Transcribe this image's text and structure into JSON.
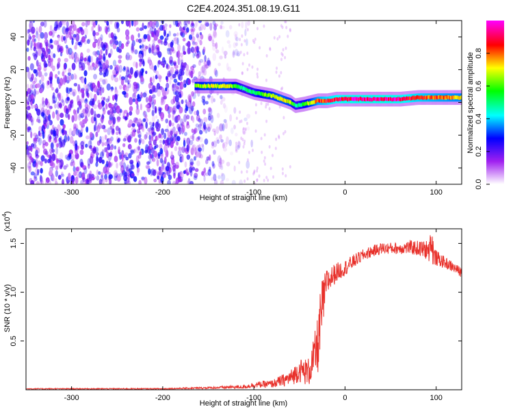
{
  "figure_title": "C2E4.2024.351.08.19.G11",
  "chart_data": [
    {
      "type": "heatmap",
      "xlabel": "Height of straight line (km)",
      "ylabel": "Frequency (Hz)",
      "xlim": [
        -350,
        128
      ],
      "ylim": [
        -50,
        50
      ],
      "xticks": [
        -300,
        -200,
        -100,
        0,
        100
      ],
      "yticks": [
        -40,
        -20,
        0,
        20,
        40
      ],
      "colorbar": {
        "label": "Normalized spectral amplitude",
        "range": [
          0,
          1
        ],
        "ticks": [
          0.0,
          0.2,
          0.4,
          0.6,
          0.8
        ],
        "colormap": [
          "#ffffff",
          "#a020f0",
          "#0000ff",
          "#00ffff",
          "#00ff00",
          "#ffff00",
          "#ff0000",
          "#ff00ff"
        ]
      },
      "signal_ridge": {
        "x": [
          -165,
          -150,
          -130,
          -120,
          -110,
          -100,
          -90,
          -80,
          -70,
          -60,
          -55,
          -45,
          -30,
          -20,
          -10,
          0,
          20,
          40,
          60,
          80,
          100,
          128
        ],
        "y": [
          10,
          10,
          10,
          10,
          8,
          6,
          5,
          4,
          2,
          0,
          -2,
          -1,
          1,
          1,
          2,
          2,
          2,
          2,
          2,
          3,
          3,
          3
        ],
        "amplitude": [
          0.65,
          0.7,
          0.72,
          0.6,
          0.5,
          0.55,
          0.65,
          0.7,
          0.75,
          0.7,
          0.5,
          0.6,
          0.85,
          0.92,
          0.95,
          0.97,
          0.98,
          0.98,
          0.97,
          0.9,
          0.85,
          0.8
        ]
      },
      "noise_region": {
        "x_range": [
          -350,
          -115
        ],
        "amplitude_range": [
          0.05,
          0.3
        ]
      }
    },
    {
      "type": "line",
      "xlabel": "Height of straight line (km)",
      "ylabel": "SNR (10 * v/v)",
      "y_multiplier": "(x10^4)",
      "xlim": [
        -350,
        128
      ],
      "ylim": [
        0,
        1.65
      ],
      "xticks": [
        -300,
        -200,
        -100,
        0,
        100
      ],
      "yticks": [
        0.5,
        1.0,
        1.5
      ],
      "series": [
        {
          "color": "#e8302a",
          "x": [
            -350,
            -300,
            -200,
            -150,
            -110,
            -100,
            -80,
            -60,
            -50,
            -40,
            -35,
            -30,
            -28,
            -25,
            -22,
            -20,
            -15,
            -10,
            0,
            10,
            20,
            30,
            40,
            50,
            60,
            70,
            80,
            90,
            95,
            100,
            110,
            120,
            128
          ],
          "y": [
            0.01,
            0.01,
            0.01,
            0.02,
            0.03,
            0.05,
            0.06,
            0.12,
            0.2,
            0.18,
            0.3,
            0.45,
            0.6,
            0.85,
            1.0,
            1.1,
            1.15,
            1.2,
            1.25,
            1.32,
            1.38,
            1.42,
            1.45,
            1.45,
            1.45,
            1.46,
            1.45,
            1.43,
            1.4,
            1.35,
            1.3,
            1.25,
            1.2
          ],
          "noise": [
            0.005,
            0.005,
            0.006,
            0.01,
            0.02,
            0.03,
            0.04,
            0.08,
            0.12,
            0.15,
            0.2,
            0.3,
            0.35,
            0.3,
            0.2,
            0.15,
            0.12,
            0.1,
            0.08,
            0.07,
            0.06,
            0.06,
            0.06,
            0.06,
            0.06,
            0.07,
            0.08,
            0.1,
            0.12,
            0.08,
            0.06,
            0.05,
            0.05
          ]
        }
      ]
    }
  ]
}
